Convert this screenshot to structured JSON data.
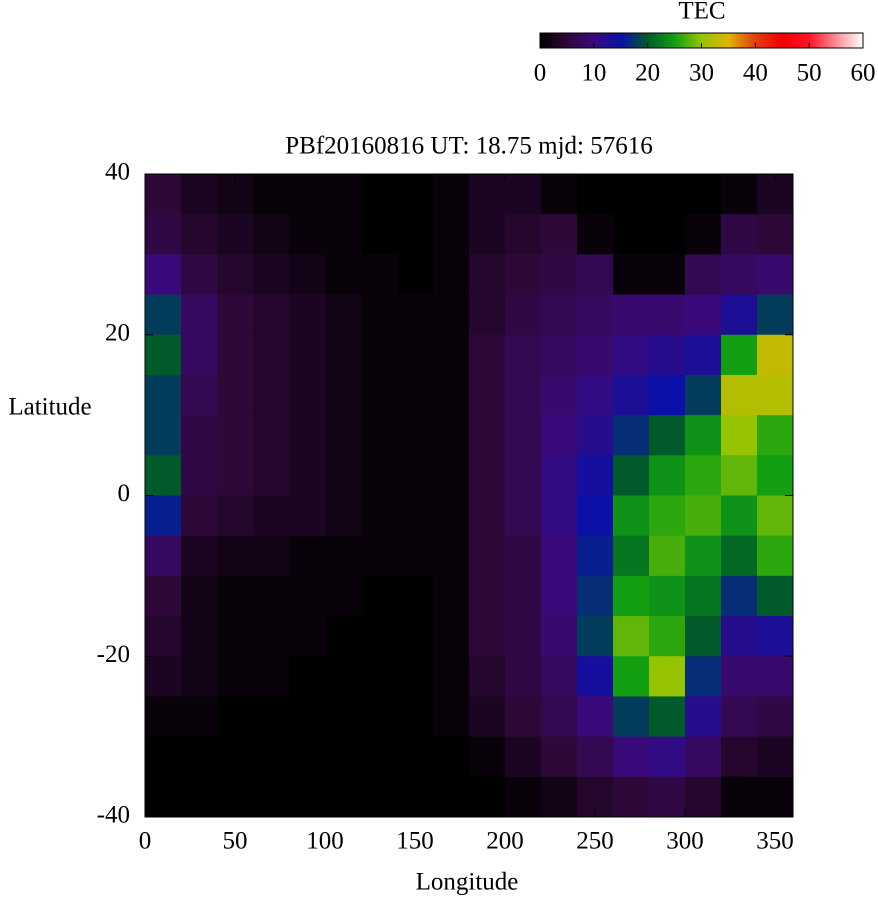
{
  "chart_data": {
    "type": "heatmap",
    "title": "PBf20160816  UT: 18.75  mjd: 57616",
    "x_label": "Longitude",
    "y_label": "Latitude",
    "colorbar_label": "TEC",
    "x": [
      10,
      30,
      50,
      70,
      90,
      110,
      130,
      150,
      170,
      190,
      210,
      230,
      250,
      270,
      290,
      310,
      330,
      350
    ],
    "y": [
      37.5,
      32.5,
      27.5,
      22.5,
      17.5,
      12.5,
      7.5,
      2.5,
      -2.5,
      -7.5,
      -12.5,
      -17.5,
      -22.5,
      -27.5,
      -32.5,
      -37.5
    ],
    "z": [
      [
        5,
        3,
        2,
        1,
        1,
        1,
        0,
        0,
        1,
        3,
        3,
        1,
        0,
        0,
        0,
        0,
        1,
        3
      ],
      [
        6,
        4,
        3,
        2,
        1,
        1,
        0,
        0,
        1,
        3,
        4,
        5,
        1,
        0,
        0,
        1,
        6,
        5
      ],
      [
        10,
        6,
        4,
        3,
        2,
        1,
        1,
        0,
        1,
        4,
        5,
        6,
        7,
        1,
        1,
        7,
        8,
        9
      ],
      [
        18,
        8,
        5,
        4,
        3,
        2,
        1,
        1,
        1,
        4,
        6,
        7,
        8,
        9,
        9,
        10,
        13,
        18
      ],
      [
        20,
        8,
        5,
        4,
        3,
        2,
        1,
        1,
        1,
        5,
        7,
        8,
        9,
        11,
        12,
        13,
        25,
        33
      ],
      [
        18,
        7,
        5,
        4,
        3,
        2,
        1,
        1,
        1,
        5,
        7,
        9,
        11,
        13,
        15,
        18,
        32,
        32
      ],
      [
        18,
        6,
        5,
        4,
        3,
        2,
        1,
        1,
        1,
        5,
        7,
        10,
        12,
        17,
        20,
        24,
        30,
        26
      ],
      [
        20,
        6,
        5,
        4,
        3,
        2,
        1,
        1,
        1,
        5,
        7,
        11,
        14,
        20,
        24,
        26,
        28,
        25
      ],
      [
        16,
        5,
        4,
        3,
        3,
        2,
        1,
        1,
        1,
        5,
        7,
        11,
        15,
        24,
        26,
        27,
        24,
        28
      ],
      [
        8,
        3,
        2,
        2,
        1,
        1,
        1,
        1,
        1,
        5,
        6,
        10,
        16,
        22,
        27,
        24,
        21,
        26
      ],
      [
        5,
        2,
        1,
        1,
        1,
        1,
        0,
        0,
        1,
        5,
        6,
        10,
        17,
        25,
        24,
        22,
        17,
        20
      ],
      [
        4,
        2,
        1,
        1,
        1,
        0,
        0,
        0,
        1,
        5,
        6,
        9,
        18,
        28,
        26,
        20,
        12,
        13
      ],
      [
        3,
        2,
        1,
        1,
        0,
        0,
        0,
        0,
        1,
        4,
        6,
        8,
        14,
        25,
        30,
        17,
        9,
        9
      ],
      [
        1,
        1,
        0,
        0,
        0,
        0,
        0,
        0,
        1,
        3,
        5,
        7,
        10,
        18,
        20,
        12,
        7,
        6
      ],
      [
        0,
        0,
        0,
        0,
        0,
        0,
        0,
        0,
        0,
        1,
        3,
        5,
        7,
        10,
        11,
        8,
        4,
        3
      ],
      [
        0,
        0,
        0,
        0,
        0,
        0,
        0,
        0,
        0,
        0,
        1,
        2,
        4,
        5,
        6,
        4,
        1,
        1
      ]
    ],
    "xlim": [
      0,
      360
    ],
    "ylim": [
      -40,
      40
    ],
    "xticks": [
      0,
      50,
      100,
      150,
      200,
      250,
      300,
      350
    ],
    "yticks": [
      -40,
      -20,
      0,
      20,
      40
    ],
    "zlim": [
      0,
      60
    ],
    "zticks": [
      0,
      10,
      20,
      30,
      40,
      50,
      60
    ],
    "colors": [
      "#000000",
      "#2e0838",
      "#3a0a7a",
      "#0a10a8",
      "#005a2a",
      "#12a012",
      "#96c400",
      "#e0b400",
      "#e0400c",
      "#f00000",
      "#ff1428",
      "#ff8c96",
      "#ffffff"
    ]
  }
}
